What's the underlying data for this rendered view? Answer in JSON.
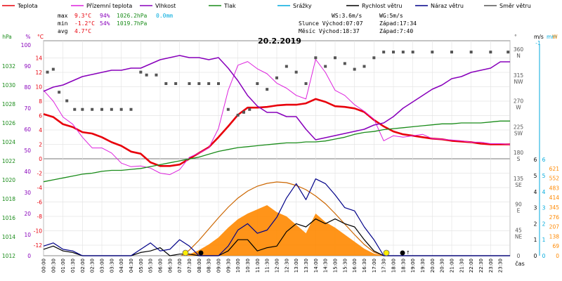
{
  "legend": [
    {
      "label": "Teplota",
      "color": "#e8000b"
    },
    {
      "label": "Přízemní teplota",
      "color": "#dd22dd"
    },
    {
      "label": "Vlhkost",
      "color": "#8800bb"
    },
    {
      "label": "Tlak",
      "color": "#1a8c1a"
    },
    {
      "label": "Srážky",
      "color": "#00aadd"
    },
    {
      "label": "Rychlost větru",
      "color": "#000000"
    },
    {
      "label": "Náraz větru",
      "color": "#000088"
    },
    {
      "label": "Směr větru",
      "color": "#555555"
    }
  ],
  "stats": {
    "max_label": "max",
    "max_temp": "9.3°C",
    "max_hum": "94%",
    "max_press": "1026.2hPa",
    "rain": "0.0mm",
    "min_label": "min",
    "min_temp": "-1.2°C",
    "min_hum": "54%",
    "min_press": "1019.7hPa",
    "avg_label": "avg",
    "avg_temp": "4.7°C"
  },
  "astro": {
    "ws": "WS:3.6m/s",
    "wg": "WG:5m/s",
    "sun_rise": "Slunce Východ:07:07",
    "sun_set": "Západ:17:34",
    "moon_rise": "Měsíc Východ:18:37",
    "moon_set": "Západ:7:40"
  },
  "chart_data": {
    "type": "line",
    "title": "20.2.2019",
    "xlabel": "čas",
    "x_ticks": [
      "00:00",
      "00:30",
      "01:00",
      "01:30",
      "02:00",
      "02:30",
      "03:00",
      "03:30",
      "04:00",
      "04:30",
      "05:00",
      "05:30",
      "06:00",
      "06:30",
      "07:00",
      "07:30",
      "08:00",
      "08:30",
      "09:00",
      "09:30",
      "10:00",
      "10:30",
      "11:00",
      "11:30",
      "12:00",
      "12:30",
      "13:00",
      "13:30",
      "14:00",
      "14:30",
      "15:00",
      "15:30",
      "16:00",
      "16:30",
      "17:00",
      "17:30",
      "18:00",
      "18:30",
      "19:00",
      "19:30",
      "20:00",
      "20:30",
      "21:00",
      "21:30",
      "22:00",
      "22:30",
      "23:00",
      "23:30"
    ],
    "axes": {
      "pressure": {
        "label": "hPa",
        "ticks": [
          1012,
          1014,
          1016,
          1018,
          1020,
          1022,
          1024,
          1026,
          1028,
          1030,
          1032
        ],
        "range": [
          1012,
          1034
        ]
      },
      "humidity": {
        "label": "%",
        "ticks": [
          0,
          10,
          20,
          30,
          40,
          50,
          60,
          70,
          80,
          90,
          100
        ],
        "range": [
          0,
          105
        ]
      },
      "temperature": {
        "label": "°C",
        "ticks": [
          -12,
          -10,
          -8,
          -6,
          -4,
          -2,
          0,
          2,
          4,
          6,
          8,
          10,
          12,
          14
        ],
        "range": [
          -12,
          14
        ]
      },
      "direction": {
        "label": "°",
        "ticks": [
          "0",
          "45 NE",
          "90 E",
          "135 SE",
          "180 S",
          "225 SW",
          "270 W",
          "315 NW",
          "360 N"
        ],
        "range": [
          0,
          360
        ]
      },
      "wind": {
        "label": "m/s",
        "ticks": [
          0,
          1,
          2,
          3,
          4,
          5,
          6
        ],
        "top_label": "-1"
      },
      "rain": {
        "label": "mm",
        "ticks": [
          0,
          1,
          2,
          3,
          4,
          5,
          6
        ]
      },
      "solar": {
        "label": "W",
        "ticks": [
          0,
          69,
          138,
          207,
          276,
          345,
          414,
          483,
          552,
          621
        ]
      }
    },
    "series": [
      {
        "name": "Teplota",
        "color": "#e8000b",
        "axis": "temperature",
        "x": [
          0,
          0.5,
          1,
          1.5,
          2,
          2.5,
          3,
          3.5,
          4,
          4.5,
          5,
          5.5,
          6,
          6.5,
          7,
          7.5,
          8,
          8.5,
          9,
          9.5,
          10,
          10.5,
          11,
          11.5,
          12,
          12.5,
          13,
          13.5,
          14,
          14.5,
          15,
          15.5,
          16,
          16.5,
          17,
          17.5,
          18,
          18.5,
          19,
          19.5,
          20,
          20.5,
          21,
          21.5,
          22,
          22.5,
          23,
          23.5,
          24
        ],
        "values": [
          6.2,
          5.8,
          4.8,
          4.4,
          3.7,
          3.5,
          3.0,
          2.3,
          1.8,
          1.0,
          0.7,
          -0.5,
          -1.0,
          -1.0,
          -0.8,
          0.0,
          0.8,
          1.6,
          3.0,
          4.5,
          6.1,
          7.1,
          7.1,
          7.2,
          7.4,
          7.5,
          7.5,
          7.7,
          8.3,
          7.9,
          7.3,
          7.2,
          7.0,
          6.5,
          5.4,
          4.5,
          3.8,
          3.4,
          3.2,
          3.0,
          2.8,
          2.7,
          2.5,
          2.4,
          2.3,
          2.1,
          2.0,
          2.0,
          2.0
        ]
      },
      {
        "name": "Přízemní teplota",
        "color": "#dd22dd",
        "axis": "temperature",
        "x": [
          0,
          0.5,
          1,
          1.5,
          2,
          2.5,
          3,
          3.5,
          4,
          4.5,
          5,
          5.5,
          6,
          6.5,
          7,
          7.5,
          8,
          8.5,
          9,
          9.5,
          10,
          10.5,
          11,
          11.5,
          12,
          12.5,
          13,
          13.5,
          14,
          14.5,
          15,
          15.5,
          16,
          16.5,
          17,
          17.5,
          18,
          18.5,
          19,
          19.5,
          20,
          20.5,
          21,
          21.5,
          22,
          22.5,
          23,
          23.5,
          24
        ],
        "values": [
          9.5,
          8.0,
          5.8,
          4.8,
          3.0,
          1.5,
          1.5,
          0.8,
          -0.6,
          -1.1,
          -1.0,
          -1.3,
          -2.0,
          -2.2,
          -1.5,
          0.2,
          0.8,
          1.5,
          4.2,
          9.5,
          13.0,
          13.5,
          12.5,
          11.8,
          10.5,
          9.8,
          8.8,
          8.3,
          13.8,
          12.0,
          9.5,
          8.8,
          7.5,
          6.6,
          5.5,
          2.5,
          3.2,
          3.0,
          3.2,
          3.4,
          2.8,
          2.7,
          2.6,
          2.5,
          2.3,
          2.3,
          2.1,
          2.1,
          2.0
        ]
      },
      {
        "name": "Vlhkost",
        "color": "#8800bb",
        "axis": "humidity",
        "x": [
          0,
          0.5,
          1,
          1.5,
          2,
          2.5,
          3,
          3.5,
          4,
          4.5,
          5,
          5.5,
          6,
          6.5,
          7,
          7.5,
          8,
          8.5,
          9,
          9.5,
          10,
          10.5,
          11,
          11.5,
          12,
          12.5,
          13,
          13.5,
          14,
          14.5,
          15,
          15.5,
          16,
          16.5,
          17,
          17.5,
          18,
          18.5,
          19,
          19.5,
          20,
          20.5,
          21,
          21.5,
          22,
          22.5,
          23,
          23.5,
          24
        ],
        "values": [
          78,
          80,
          81,
          83,
          85,
          86,
          87,
          88,
          88,
          89,
          89,
          91,
          93,
          94,
          95,
          94,
          94,
          93,
          94,
          89,
          83,
          76,
          71,
          68,
          68,
          66,
          66,
          60,
          55,
          56,
          57,
          58,
          59,
          60,
          62,
          63,
          66,
          70,
          73,
          76,
          79,
          81,
          84,
          85,
          87,
          88,
          89,
          92,
          92
        ]
      },
      {
        "name": "Tlak",
        "color": "#1a8c1a",
        "axis": "pressure",
        "x": [
          0,
          0.5,
          1,
          1.5,
          2,
          2.5,
          3,
          3.5,
          4,
          4.5,
          5,
          5.5,
          6,
          6.5,
          7,
          7.5,
          8,
          8.5,
          9,
          9.5,
          10,
          10.5,
          11,
          11.5,
          12,
          12.5,
          13,
          13.5,
          14,
          14.5,
          15,
          15.5,
          16,
          16.5,
          17,
          17.5,
          18,
          18.5,
          19,
          19.5,
          20,
          20.5,
          21,
          21.5,
          22,
          22.5,
          23,
          23.5,
          24
        ],
        "values": [
          1019.8,
          1020.0,
          1020.2,
          1020.4,
          1020.6,
          1020.7,
          1020.9,
          1021.0,
          1021.0,
          1021.1,
          1021.2,
          1021.4,
          1021.6,
          1021.8,
          1022.0,
          1022.2,
          1022.4,
          1022.7,
          1023.0,
          1023.2,
          1023.4,
          1023.5,
          1023.6,
          1023.7,
          1023.8,
          1023.9,
          1023.9,
          1024.0,
          1024.0,
          1024.1,
          1024.3,
          1024.5,
          1024.8,
          1025.0,
          1025.1,
          1025.3,
          1025.4,
          1025.5,
          1025.6,
          1025.7,
          1025.8,
          1025.9,
          1025.9,
          1026.0,
          1026.0,
          1026.0,
          1026.1,
          1026.2,
          1026.2
        ]
      },
      {
        "name": "Směr větru",
        "color": "#555555",
        "axis": "direction",
        "x": [
          0.2,
          0.5,
          0.8,
          1.2,
          1.6,
          2.0,
          2.5,
          3.0,
          3.5,
          4.0,
          4.5,
          5.0,
          5.3,
          5.8,
          6.3,
          6.8,
          7.5,
          8.0,
          8.5,
          9.0,
          9.5,
          10.0,
          10.3,
          10.6,
          11.0,
          11.5,
          12.0,
          12.5,
          13.0,
          13.5,
          14.0,
          14.5,
          15.0,
          15.5,
          16.0,
          16.5,
          17.0,
          17.5,
          18.0,
          18.5,
          19,
          20,
          21,
          22,
          23,
          23.9
        ],
        "values": [
          320,
          325,
          285,
          270,
          255,
          255,
          255,
          255,
          255,
          255,
          255,
          320,
          315,
          315,
          300,
          300,
          300,
          300,
          300,
          300,
          255,
          245,
          250,
          255,
          300,
          290,
          310,
          330,
          320,
          300,
          345,
          330,
          345,
          335,
          325,
          330,
          345,
          355,
          355,
          355,
          355,
          355,
          355,
          355,
          355,
          355
        ]
      },
      {
        "name": "Rychlost větru",
        "color": "#000000",
        "axis": "wind",
        "x": [
          0,
          0.5,
          1,
          1.5,
          2,
          2.5,
          3,
          3.5,
          4,
          4.5,
          5,
          5.5,
          6,
          6.5,
          7,
          7.5,
          8,
          8.5,
          9,
          9.5,
          10,
          10.5,
          11,
          11.5,
          12,
          12.5,
          13,
          13.5,
          14,
          14.5,
          15,
          15.5,
          16,
          16.5,
          17,
          17.5,
          18,
          18.5,
          19,
          19.5,
          20,
          20.5,
          21,
          21.5,
          22,
          22.5,
          23,
          23.5,
          24
        ],
        "values": [
          0.4,
          0.6,
          0.3,
          0.2,
          0,
          0,
          0,
          0,
          0,
          0,
          0.2,
          0.3,
          0.5,
          0,
          0.1,
          0.1,
          0,
          0,
          0,
          0.3,
          1.0,
          1.0,
          0.3,
          0.5,
          0.6,
          1.5,
          2.0,
          1.8,
          2.3,
          2.0,
          2.3,
          2.0,
          1.8,
          1.0,
          0.3,
          0,
          0,
          0,
          0,
          0,
          0,
          0,
          0,
          0,
          0,
          0,
          0,
          0,
          0
        ]
      },
      {
        "name": "Náraz větru",
        "color": "#000088",
        "axis": "wind",
        "x": [
          0,
          0.5,
          1,
          1.5,
          2,
          2.5,
          3,
          3.5,
          4,
          4.5,
          5,
          5.5,
          6,
          6.5,
          7,
          7.5,
          8,
          8.5,
          9,
          9.5,
          10,
          10.5,
          11,
          11.5,
          12,
          12.5,
          13,
          13.5,
          14,
          14.5,
          15,
          15.5,
          16,
          16.5,
          17,
          17.5,
          18,
          18.5,
          19,
          19.5,
          20,
          20.5,
          21,
          21.5,
          22,
          22.5,
          23,
          23.5,
          24
        ],
        "values": [
          0.6,
          0.8,
          0.4,
          0.3,
          0,
          0,
          0,
          0,
          0,
          0,
          0.4,
          0.8,
          0.3,
          0.4,
          1.0,
          0.6,
          0,
          0,
          0,
          0.6,
          1.6,
          2.0,
          1.4,
          1.6,
          2.4,
          3.6,
          4.5,
          3.5,
          4.8,
          4.5,
          3.8,
          3.0,
          2.8,
          1.8,
          1.0,
          0,
          0,
          0,
          0,
          0,
          0,
          0,
          0,
          0,
          0,
          0,
          0,
          0,
          0
        ]
      },
      {
        "name": "Solar",
        "color": "#ff8800",
        "axis": "solar",
        "x": [
          7.1,
          7.5,
          8,
          8.5,
          9,
          9.5,
          10,
          10.5,
          11,
          11.5,
          12,
          12.5,
          13,
          13.5,
          14,
          14.5,
          15,
          15.5,
          16,
          16.5,
          17,
          17.5
        ],
        "values": [
          0,
          10,
          40,
          80,
          130,
          200,
          260,
          300,
          330,
          360,
          310,
          280,
          220,
          160,
          300,
          240,
          200,
          150,
          100,
          50,
          15,
          0
        ]
      },
      {
        "name": "Solar max",
        "color": "#cc6600",
        "axis": "solar",
        "x": [
          7.1,
          7.5,
          8,
          8.5,
          9,
          9.5,
          10,
          10.5,
          11,
          11.5,
          12,
          12.5,
          13,
          13.5,
          14,
          14.5,
          15,
          15.5,
          16,
          16.5,
          17,
          17.5
        ],
        "values": [
          0,
          40,
          110,
          190,
          270,
          345,
          410,
          460,
          495,
          515,
          525,
          520,
          500,
          470,
          425,
          370,
          300,
          225,
          150,
          80,
          25,
          0
        ]
      }
    ]
  }
}
